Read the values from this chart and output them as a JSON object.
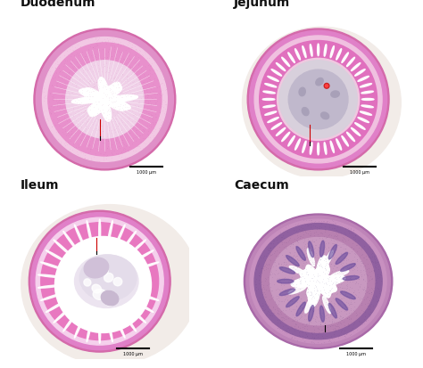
{
  "background_color": "#ffffff",
  "panel_titles": [
    "Duodenum",
    "Jejunum",
    "Ileum",
    "Caecum"
  ],
  "scale_bar_labels": [
    "1000 μm",
    "1000 μm",
    "1000 μm",
    "1000 μm"
  ],
  "figsize": [
    4.74,
    4.14
  ],
  "dpi": 100,
  "outer_wall_pink": "#d46aaa",
  "muscle_pink": "#e090c8",
  "submucosa_pink": "#f0b8dc",
  "mucosa_pink": "#e878be",
  "inner_pale": "#f8d8ee",
  "lumen_white": "#ffffff",
  "villi_white": "#ffffff",
  "lumen_gray": "#d8d0dc",
  "lumen_dark_gray": "#b8b0c0",
  "caecum_outer": "#b878b0",
  "caecum_muscle": "#c888c0",
  "caecum_submucosa": "#d898d0",
  "caecum_mucosa_purple": "#906898",
  "caecum_inner": "#c090b8",
  "ileum_lumen_pale": "#e8e0f0",
  "ileum_content": "#d0c8dc",
  "scalebar_color": "#000000",
  "scalebar_red": "#cc0000",
  "text_color": "#111111",
  "tissue_bg": "#f2ece8"
}
